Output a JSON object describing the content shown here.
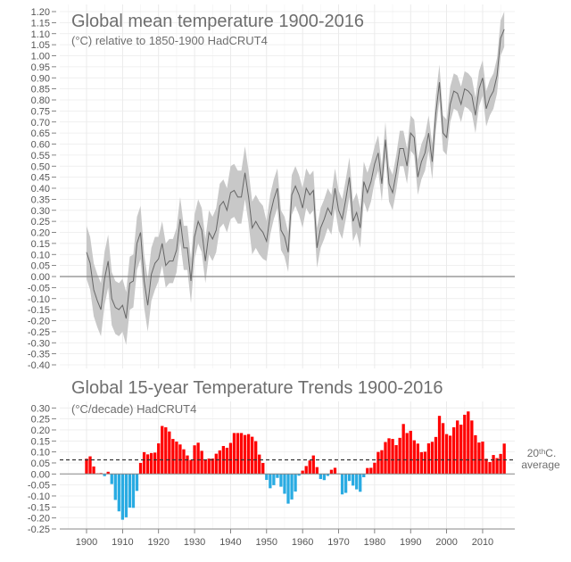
{
  "chart_data": [
    {
      "type": "line",
      "title": "Global mean temperature 1900-2016",
      "subtitle": "(°C) relative to 1850-1900 HadCRUT4",
      "ylim": [
        -0.4,
        1.2
      ],
      "y_ticks": [
        "-0.40",
        "-0.35",
        "-0.30",
        "-0.25",
        "-0.20",
        "-0.15",
        "-0.10",
        "-0.05",
        "0.00",
        "0.05",
        "0.10",
        "0.15",
        "0.20",
        "0.25",
        "0.30",
        "0.35",
        "0.40",
        "0.45",
        "0.50",
        "0.55",
        "0.60",
        "0.65",
        "0.70",
        "0.75",
        "0.80",
        "0.85",
        "0.90",
        "0.95",
        "1.00",
        "1.05",
        "1.10",
        "1.15",
        "1.20"
      ],
      "grid": true,
      "x_start": 1900,
      "values": [
        0.11,
        0.06,
        -0.06,
        -0.11,
        -0.15,
        -0.01,
        0.07,
        -0.1,
        -0.14,
        -0.15,
        -0.13,
        -0.19,
        -0.03,
        -0.02,
        0.15,
        0.2,
        -0.02,
        -0.13,
        0.01,
        0.06,
        0.08,
        0.15,
        0.05,
        0.07,
        0.07,
        0.12,
        0.26,
        0.13,
        0.13,
        -0.02,
        0.18,
        0.25,
        0.21,
        0.07,
        0.2,
        0.17,
        0.21,
        0.32,
        0.34,
        0.3,
        0.38,
        0.39,
        0.36,
        0.36,
        0.47,
        0.36,
        0.22,
        0.25,
        0.22,
        0.2,
        0.16,
        0.28,
        0.35,
        0.4,
        0.21,
        0.18,
        0.11,
        0.37,
        0.41,
        0.37,
        0.31,
        0.4,
        0.37,
        0.39,
        0.13,
        0.22,
        0.26,
        0.31,
        0.28,
        0.4,
        0.3,
        0.26,
        0.35,
        0.45,
        0.25,
        0.29,
        0.22,
        0.43,
        0.38,
        0.43,
        0.51,
        0.56,
        0.42,
        0.62,
        0.42,
        0.38,
        0.47,
        0.58,
        0.58,
        0.5,
        0.65,
        0.63,
        0.45,
        0.52,
        0.56,
        0.65,
        0.52,
        0.74,
        0.88,
        0.65,
        0.63,
        0.78,
        0.84,
        0.83,
        0.78,
        0.85,
        0.84,
        0.82,
        0.73,
        0.85,
        0.9,
        0.76,
        0.81,
        0.84,
        0.91,
        1.08,
        1.12
      ],
      "uncertainty_halfwidth": [
        {
          "from": 1900,
          "to": 1919,
          "value": 0.12
        },
        {
          "from": 1920,
          "to": 1939,
          "value": 0.1
        },
        {
          "from": 1940,
          "to": 1949,
          "value": 0.12
        },
        {
          "from": 1950,
          "to": 1979,
          "value": 0.09
        },
        {
          "from": 1980,
          "to": 2016,
          "value": 0.08
        }
      ],
      "colors": {
        "line": "#666666",
        "band": "#c8c8c8",
        "zero_line": "#888888"
      }
    },
    {
      "type": "bar",
      "title": "Global 15-year Temperature Trends 1900-2016",
      "subtitle": "(°C/decade) HadCRUT4",
      "ylim": [
        -0.25,
        0.3
      ],
      "y_ticks": [
        "-0.25",
        "-0.20",
        "-0.15",
        "-0.10",
        "-0.05",
        "0.00",
        "0.05",
        "0.10",
        "0.15",
        "0.20",
        "0.25",
        "0.30"
      ],
      "x_ticks": [
        "1900",
        "1910",
        "1920",
        "1930",
        "1940",
        "1950",
        "1960",
        "1970",
        "1980",
        "1990",
        "2000",
        "2010"
      ],
      "grid": true,
      "x_start": 1900,
      "values": [
        0.069,
        0.08,
        0.034,
        0.003,
        0.004,
        -0.01,
        0.01,
        -0.046,
        -0.118,
        -0.17,
        -0.208,
        -0.197,
        -0.153,
        -0.154,
        -0.077,
        0.05,
        0.099,
        0.089,
        0.095,
        0.097,
        0.139,
        0.218,
        0.212,
        0.193,
        0.159,
        0.147,
        0.134,
        0.112,
        0.084,
        0.064,
        0.13,
        0.142,
        0.105,
        0.064,
        0.07,
        0.07,
        0.092,
        0.107,
        0.127,
        0.119,
        0.141,
        0.186,
        0.186,
        0.186,
        0.177,
        0.181,
        0.169,
        0.149,
        0.088,
        0.05,
        -0.027,
        -0.065,
        -0.051,
        -0.018,
        -0.058,
        -0.09,
        -0.135,
        -0.116,
        -0.08,
        -0.008,
        0.015,
        0.036,
        0.061,
        0.084,
        0.031,
        -0.023,
        -0.028,
        -0.009,
        0.019,
        0.028,
        0.002,
        -0.093,
        -0.086,
        -0.032,
        -0.053,
        -0.07,
        -0.081,
        -0.015,
        0.027,
        0.028,
        0.051,
        0.1,
        0.108,
        0.145,
        0.162,
        0.159,
        0.131,
        0.164,
        0.227,
        0.186,
        0.196,
        0.153,
        0.138,
        0.099,
        0.101,
        0.139,
        0.146,
        0.168,
        0.264,
        0.231,
        0.181,
        0.174,
        0.212,
        0.243,
        0.224,
        0.269,
        0.284,
        0.243,
        0.176,
        0.143,
        0.147,
        0.069,
        0.054,
        0.086,
        0.072,
        0.091,
        0.138
      ],
      "reference_line": {
        "value": 0.064,
        "label_line1": "20ᵗʰC.",
        "label_line2": "average"
      },
      "colors": {
        "positive": "#ff0000",
        "negative": "#29abe2",
        "reference": "#333333"
      }
    }
  ]
}
